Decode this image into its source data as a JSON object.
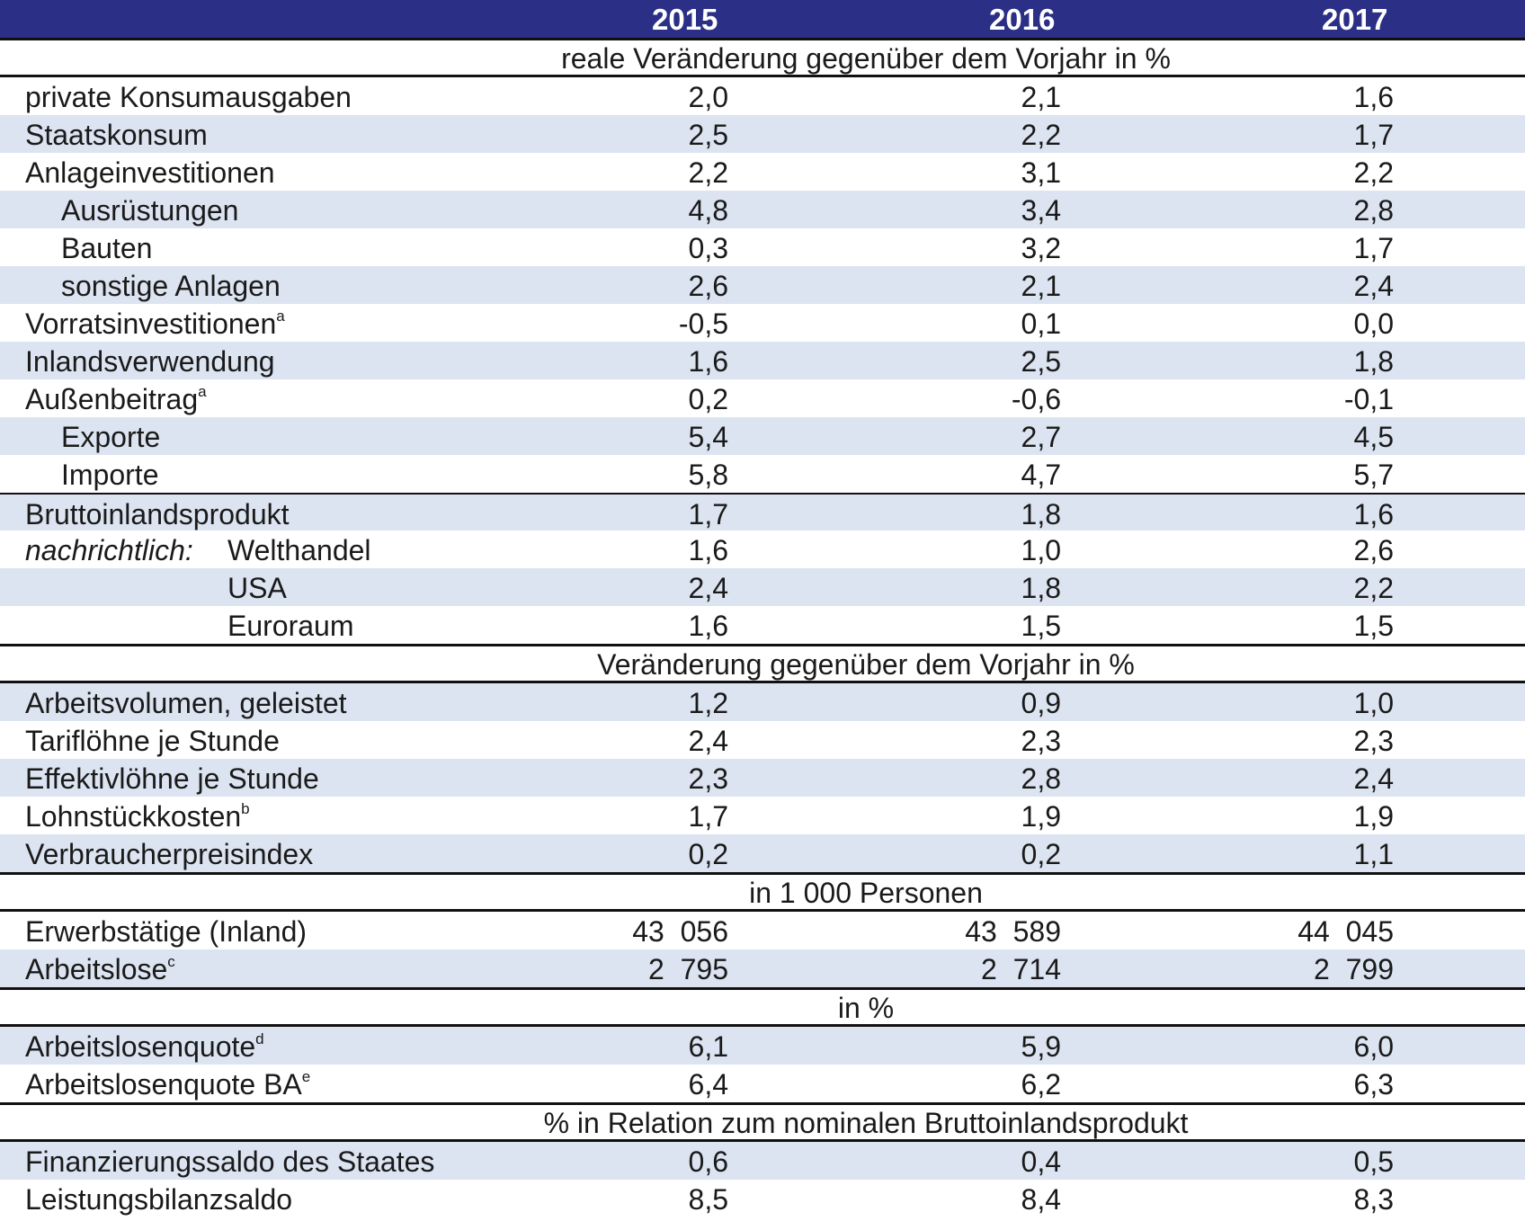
{
  "years": [
    "2015",
    "2016",
    "2017"
  ],
  "sections": {
    "real_change": "reale Veränderung gegenüber dem Vorjahr in %",
    "change": "Veränderung gegenüber dem Vorjahr in %",
    "persons": "in 1  000 Personen",
    "percent": "in %",
    "relation": "% in Relation zum nominalen Bruttoinlandsprodukt"
  },
  "rows": {
    "private_konsum": {
      "label": "private Konsumausgaben",
      "v2015": "2,0",
      "v2016": "2,1",
      "v2017": "1,6"
    },
    "staatskonsum": {
      "label": "Staatskonsum",
      "v2015": "2,5",
      "v2016": "2,2",
      "v2017": "1,7"
    },
    "anlageinvestitionen": {
      "label": "Anlageinvestitionen",
      "v2015": "2,2",
      "v2016": "3,1",
      "v2017": "2,2"
    },
    "ausruestungen": {
      "label": "Ausrüstungen",
      "v2015": "4,8",
      "v2016": "3,4",
      "v2017": "2,8"
    },
    "bauten": {
      "label": "Bauten",
      "v2015": "0,3",
      "v2016": "3,2",
      "v2017": "1,7"
    },
    "sonstige_anlagen": {
      "label": "sonstige Anlagen",
      "v2015": "2,6",
      "v2016": "2,1",
      "v2017": "2,4"
    },
    "vorratsinvestitionen": {
      "label": "Vorratsinvestitionen",
      "sup": "a",
      "v2015": "-0,5",
      "v2016": "0,1",
      "v2017": "0,0"
    },
    "inlandsverwendung": {
      "label": "Inlandsverwendung",
      "v2015": "1,6",
      "v2016": "2,5",
      "v2017": "1,8"
    },
    "aussenbeitrag": {
      "label": "Außenbeitrag",
      "sup": "a",
      "v2015": "0,2",
      "v2016": "-0,6",
      "v2017": "-0,1"
    },
    "exporte": {
      "label": "Exporte",
      "v2015": "5,4",
      "v2016": "2,7",
      "v2017": "4,5"
    },
    "importe": {
      "label": "Importe",
      "v2015": "5,8",
      "v2016": "4,7",
      "v2017": "5,7"
    },
    "bip": {
      "label": "Bruttoinlandsprodukt",
      "v2015": "1,7",
      "v2016": "1,8",
      "v2017": "1,6"
    },
    "welthandel": {
      "prefix": "nachrichtlich:",
      "label": "Welthandel",
      "v2015": "1,6",
      "v2016": "1,0",
      "v2017": "2,6"
    },
    "usa": {
      "label": "USA",
      "v2015": "2,4",
      "v2016": "1,8",
      "v2017": "2,2"
    },
    "euroraum": {
      "label": "Euroraum",
      "v2015": "1,6",
      "v2016": "1,5",
      "v2017": "1,5"
    },
    "arbeitsvolumen": {
      "label": "Arbeitsvolumen, geleistet",
      "v2015": "1,2",
      "v2016": "0,9",
      "v2017": "1,0"
    },
    "tarifloehne": {
      "label": "Tariflöhne je Stunde",
      "v2015": "2,4",
      "v2016": "2,3",
      "v2017": "2,3"
    },
    "effektivloehne": {
      "label": "Effektivlöhne je Stunde",
      "v2015": "2,3",
      "v2016": "2,8",
      "v2017": "2,4"
    },
    "lohnstueckkosten": {
      "label": "Lohnstückkosten",
      "sup": "b",
      "v2015": "1,7",
      "v2016": "1,9",
      "v2017": "1,9"
    },
    "vpi": {
      "label": "Verbraucherpreisindex",
      "v2015": "0,2",
      "v2016": "0,2",
      "v2017": "1,1"
    },
    "erwerbstaetige": {
      "label": "Erwerbstätige (Inland)",
      "v2015": "43  056",
      "v2016": "43  589",
      "v2017": "44  045"
    },
    "arbeitslose": {
      "label": "Arbeitslose",
      "sup": "c",
      "v2015": "2  795",
      "v2016": "2  714",
      "v2017": "2  799"
    },
    "alq": {
      "label": "Arbeitslosenquote",
      "sup": "d",
      "v2015": "6,1",
      "v2016": "5,9",
      "v2017": "6,0"
    },
    "alq_ba": {
      "label": "Arbeitslosenquote BA",
      "sup": "e",
      "v2015": "6,4",
      "v2016": "6,2",
      "v2017": "6,3"
    },
    "finanzierungssaldo": {
      "label": "Finanzierungssaldo des Staates",
      "v2015": "0,6",
      "v2016": "0,4",
      "v2017": "0,5"
    },
    "leistungsbilanzsaldo": {
      "label": "Leistungsbilanzsaldo",
      "v2015": "8,5",
      "v2016": "8,4",
      "v2017": "8,3"
    }
  }
}
